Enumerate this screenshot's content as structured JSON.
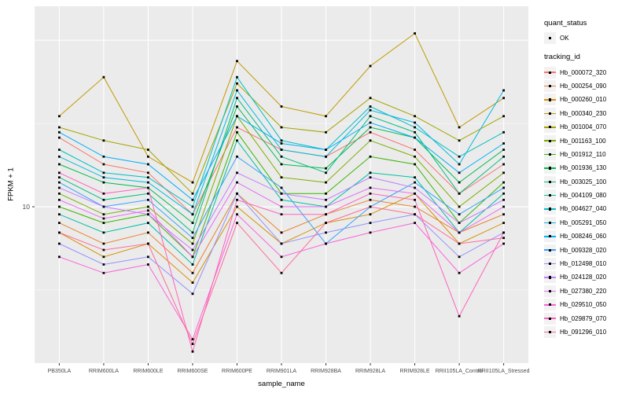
{
  "chart": {
    "ylabel": "FPKM + 1",
    "xlabel": "sample_name"
  },
  "legend": {
    "quant_status_title": "quant_status",
    "quant_status_items": [
      "OK"
    ],
    "tracking_id_title": "tracking_id"
  },
  "chart_data": {
    "type": "line",
    "y_scale": "log10",
    "ylim": [
      1.15,
      160
    ],
    "yticks": [
      10
    ],
    "major_breaks": [
      10,
      100
    ],
    "minor_breaks": [
      3.162,
      31.62
    ],
    "title": "",
    "xlabel": "sample_name",
    "ylabel": "FPKM + 1",
    "panel_color": "#EBEBEB",
    "categories": [
      "PB350LA",
      "RRIM600LA",
      "RRIM600LE",
      "RRIM600SE",
      "RRIM600PE",
      "RRIM901LA",
      "RRIM928BA",
      "RRIM928LA",
      "RRIM928LE",
      "RRII105LA_Control",
      "RRII105LA_Stressed"
    ],
    "series": [
      {
        "name": "Hb_000072_320",
        "color": "#F8766D",
        "values": [
          26,
          18,
          16,
          9,
          30,
          22,
          20,
          28,
          22,
          12,
          18
        ]
      },
      {
        "name": "Hb_000254_090",
        "color": "#EA8331",
        "values": [
          8,
          6,
          7,
          4,
          12,
          7,
          9,
          11,
          10,
          7,
          9
        ]
      },
      {
        "name": "Hb_000260_010",
        "color": "#D89000",
        "values": [
          7,
          5,
          6,
          3.5,
          10,
          6,
          8,
          9,
          12,
          6,
          8
        ]
      },
      {
        "name": "Hb_000340_230",
        "color": "#C09B00",
        "values": [
          35,
          60,
          20,
          14,
          75,
          40,
          35,
          70,
          110,
          30,
          45
        ]
      },
      {
        "name": "Hb_001004_070",
        "color": "#A3A500",
        "values": [
          30,
          25,
          22,
          12,
          55,
          30,
          28,
          45,
          35,
          25,
          35
        ]
      },
      {
        "name": "Hb_001163_100",
        "color": "#7CAE00",
        "values": [
          12,
          9,
          10,
          6,
          35,
          15,
          14,
          25,
          20,
          10,
          16
        ]
      },
      {
        "name": "Hb_001912_110",
        "color": "#39B600",
        "values": [
          10,
          8,
          9,
          5,
          28,
          12,
          12,
          20,
          18,
          8,
          14
        ]
      },
      {
        "name": "Hb_001936_130",
        "color": "#00BB4E",
        "values": [
          18,
          14,
          13,
          8,
          40,
          18,
          17,
          30,
          26,
          14,
          22
        ]
      },
      {
        "name": "Hb_003025_100",
        "color": "#00BF7D",
        "values": [
          15,
          11,
          12,
          7,
          45,
          20,
          16,
          35,
          28,
          12,
          20
        ]
      },
      {
        "name": "Hb_004109_080",
        "color": "#00C1A3",
        "values": [
          9,
          7,
          8,
          4.5,
          25,
          11,
          10,
          16,
          15,
          7,
          12
        ]
      },
      {
        "name": "Hb_004627_040",
        "color": "#00BFC4",
        "values": [
          22,
          16,
          15,
          10,
          60,
          25,
          22,
          40,
          30,
          20,
          28
        ]
      },
      {
        "name": "Hb_005291_050",
        "color": "#00BAE0",
        "values": [
          20,
          15,
          14,
          9,
          50,
          22,
          20,
          38,
          32,
          18,
          50
        ]
      },
      {
        "name": "Hb_008246_060",
        "color": "#00B0F6",
        "values": [
          28,
          20,
          18,
          11,
          35,
          24,
          22,
          32,
          26,
          16,
          24
        ]
      },
      {
        "name": "Hb_009328_020",
        "color": "#35A2FF",
        "values": [
          14,
          10,
          11,
          6.5,
          20,
          13,
          6,
          10,
          14,
          9,
          13
        ]
      },
      {
        "name": "Hb_012498_010",
        "color": "#9590FF",
        "values": [
          6,
          4.5,
          5,
          3,
          12,
          6,
          7,
          8,
          9,
          5,
          7
        ]
      },
      {
        "name": "Hb_024128_020",
        "color": "#C77CFF",
        "values": [
          13,
          10,
          9,
          5.5,
          16,
          12,
          11,
          15,
          13,
          8,
          11
        ]
      },
      {
        "name": "Hb_027380_220",
        "color": "#E76BF3",
        "values": [
          11,
          8.5,
          9.5,
          5,
          14,
          10,
          10,
          13,
          12,
          7,
          10
        ]
      },
      {
        "name": "Hb_029510_050",
        "color": "#FA62DB",
        "values": [
          5,
          4,
          4.5,
          1.6,
          9,
          5,
          6,
          7,
          8,
          4,
          6
        ]
      },
      {
        "name": "Hb_029879_070",
        "color": "#FF62BC",
        "values": [
          16,
          12,
          13,
          1.35,
          11,
          9,
          9,
          12,
          11,
          2.2,
          7
        ]
      },
      {
        "name": "Hb_091296_010",
        "color": "#FF6A98",
        "values": [
          7,
          5.5,
          6,
          1.5,
          8,
          4,
          8,
          10,
          9,
          6,
          6.5
        ]
      }
    ]
  }
}
